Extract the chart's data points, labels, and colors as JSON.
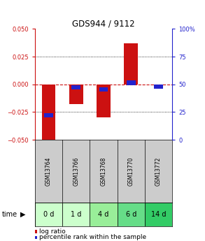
{
  "title": "GDS944 / 9112",
  "categories": [
    "GSM13764",
    "GSM13766",
    "GSM13768",
    "GSM13770",
    "GSM13772"
  ],
  "time_labels": [
    "0 d",
    "1 d",
    "4 d",
    "6 d",
    "14 d"
  ],
  "log_ratios": [
    -0.053,
    -0.018,
    -0.03,
    0.037,
    -0.001
  ],
  "percentile_ranks": [
    0.22,
    0.475,
    0.455,
    0.515,
    0.48
  ],
  "ylim": [
    -0.05,
    0.05
  ],
  "yticks_left": [
    -0.05,
    -0.025,
    0,
    0.025,
    0.05
  ],
  "yticks_right": [
    0,
    25,
    50,
    75,
    100
  ],
  "bar_color": "#cc1111",
  "percentile_color": "#2222cc",
  "zero_line_color": "#cc1111",
  "grid_color": "#000000",
  "bg_plot": "#ffffff",
  "bg_gsm": "#cccccc",
  "bg_time_colors": [
    "#ccffcc",
    "#ccffcc",
    "#99ee99",
    "#66dd88",
    "#33cc66"
  ],
  "bar_width": 0.5,
  "percentile_bar_height": 0.004,
  "left_tick_color": "#cc1111",
  "right_tick_color": "#2222cc"
}
